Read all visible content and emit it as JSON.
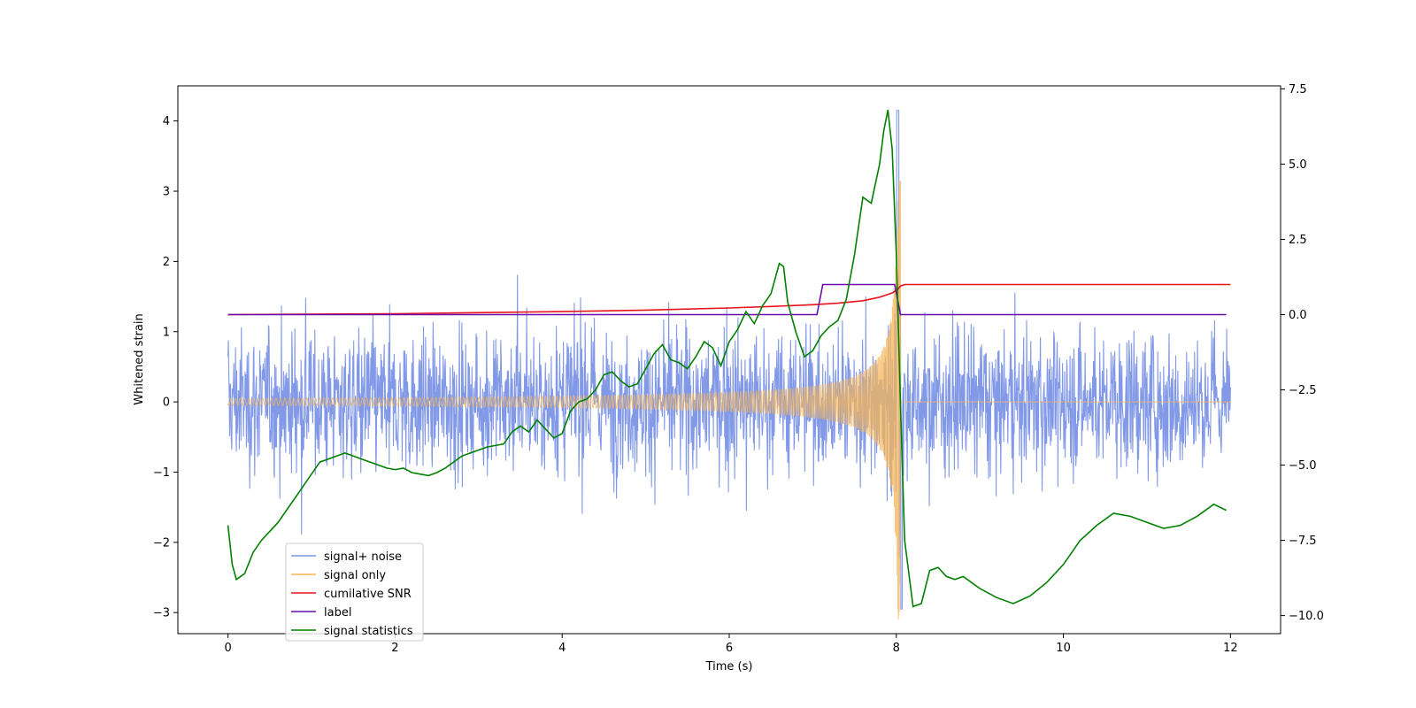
{
  "chart_data": {
    "type": "line",
    "title": "",
    "xlabel": "Time (s)",
    "ylabel": "Whitened strain",
    "ylabel_right": "",
    "xlim": [
      -0.6,
      12.6
    ],
    "ylim": [
      -3.3,
      4.5
    ],
    "ylim_right": [
      -10.6,
      7.6
    ],
    "xticks": [
      0,
      2,
      4,
      6,
      8,
      10,
      12
    ],
    "yticks": [
      -3,
      -2,
      -1,
      0,
      1,
      2,
      3,
      4
    ],
    "yticks_right": [
      -10.0,
      -7.5,
      -5.0,
      -2.5,
      0.0,
      2.5,
      5.0,
      7.5
    ],
    "yticks_right_labels": [
      "−10.0",
      "−7.5",
      "−5.0",
      "−2.5",
      "0.0",
      "2.5",
      "5.0",
      "7.5"
    ],
    "grid": false,
    "legend_position": "lower-left",
    "series": [
      {
        "name": "signal+ noise",
        "axis": "left",
        "color": "#7b94e6",
        "kind": "noise",
        "description_values": {
          "t_start": 0,
          "t_end": 12,
          "typical_min": -1.6,
          "typical_max": 1.8,
          "peak_max": 4.2,
          "peak_min": -3.0
        }
      },
      {
        "name": "signal only",
        "axis": "left",
        "color": "#f5b65a",
        "kind": "chirp",
        "merger_time": 8.05,
        "amplitude_start": 0.05,
        "amplitude_peak": 3.2,
        "after_merger": 0.0
      },
      {
        "name": "cumilative SNR",
        "axis": "right",
        "color": "#e8141b",
        "x": [
          0,
          2,
          4,
          5,
          6,
          6.5,
          7,
          7.3,
          7.6,
          7.8,
          7.95,
          8.02,
          8.05,
          8.1,
          12
        ],
        "values": [
          0.0,
          0.03,
          0.1,
          0.15,
          0.22,
          0.27,
          0.33,
          0.38,
          0.46,
          0.58,
          0.72,
          0.85,
          0.95,
          1.0,
          1.0
        ]
      },
      {
        "name": "label",
        "axis": "right",
        "color": "#6a0dad",
        "x": [
          0,
          7.05,
          7.12,
          7.98,
          8.05,
          11.95
        ],
        "values": [
          0.0,
          0.0,
          1.0,
          1.0,
          0.0,
          0.0
        ]
      },
      {
        "name": "signal statistics",
        "axis": "right",
        "color": "#008000",
        "x": [
          0,
          0.05,
          0.1,
          0.2,
          0.3,
          0.4,
          0.5,
          0.6,
          0.7,
          0.8,
          0.9,
          1.0,
          1.1,
          1.2,
          1.3,
          1.4,
          1.5,
          1.6,
          1.7,
          1.8,
          1.9,
          2.0,
          2.1,
          2.2,
          2.3,
          2.4,
          2.5,
          2.6,
          2.7,
          2.8,
          2.9,
          3.0,
          3.1,
          3.2,
          3.3,
          3.4,
          3.5,
          3.6,
          3.7,
          3.8,
          3.9,
          4.0,
          4.1,
          4.2,
          4.3,
          4.4,
          4.5,
          4.6,
          4.7,
          4.8,
          4.9,
          5.0,
          5.1,
          5.2,
          5.3,
          5.4,
          5.5,
          5.6,
          5.7,
          5.8,
          5.9,
          6.0,
          6.1,
          6.2,
          6.3,
          6.4,
          6.5,
          6.6,
          6.65,
          6.7,
          6.8,
          6.9,
          7.0,
          7.1,
          7.2,
          7.3,
          7.4,
          7.5,
          7.6,
          7.7,
          7.8,
          7.85,
          7.9,
          7.95,
          8.0,
          8.05,
          8.1,
          8.2,
          8.3,
          8.4,
          8.5,
          8.6,
          8.7,
          8.8,
          8.9,
          9.0,
          9.2,
          9.4,
          9.6,
          9.8,
          10.0,
          10.2,
          10.4,
          10.6,
          10.8,
          11.0,
          11.2,
          11.4,
          11.6,
          11.8,
          11.95
        ],
        "values": [
          -7.0,
          -8.3,
          -8.8,
          -8.6,
          -7.9,
          -7.5,
          -7.2,
          -6.9,
          -6.5,
          -6.1,
          -5.7,
          -5.3,
          -4.9,
          -4.8,
          -4.7,
          -4.6,
          -4.7,
          -4.8,
          -4.9,
          -5.0,
          -5.1,
          -5.15,
          -5.1,
          -5.25,
          -5.3,
          -5.35,
          -5.25,
          -5.1,
          -4.9,
          -4.7,
          -4.6,
          -4.5,
          -4.4,
          -4.35,
          -4.3,
          -3.9,
          -3.7,
          -3.9,
          -3.5,
          -3.8,
          -4.1,
          -3.95,
          -3.2,
          -2.9,
          -2.8,
          -2.5,
          -2.0,
          -1.9,
          -2.2,
          -2.4,
          -2.3,
          -1.8,
          -1.3,
          -1.0,
          -1.5,
          -1.6,
          -1.8,
          -1.4,
          -0.9,
          -1.1,
          -1.7,
          -0.9,
          -0.5,
          0.1,
          -0.3,
          0.3,
          0.7,
          1.7,
          1.6,
          0.4,
          -0.6,
          -1.4,
          -1.2,
          -0.7,
          -0.4,
          -0.2,
          0.5,
          2.0,
          3.9,
          3.7,
          5.0,
          6.1,
          6.8,
          5.5,
          2.0,
          -3.0,
          -7.5,
          -9.7,
          -9.6,
          -8.5,
          -8.4,
          -8.7,
          -8.8,
          -8.7,
          -8.9,
          -9.1,
          -9.4,
          -9.6,
          -9.35,
          -8.9,
          -8.3,
          -7.5,
          -7.0,
          -6.6,
          -6.7,
          -6.9,
          -7.1,
          -7.0,
          -6.7,
          -6.3,
          -6.5
        ]
      }
    ]
  },
  "legend": {
    "items": [
      {
        "label": "signal+ noise",
        "color": "#7b94e6"
      },
      {
        "label": "signal only",
        "color": "#f5b65a"
      },
      {
        "label": "cumilative SNR",
        "color": "#e8141b"
      },
      {
        "label": "label",
        "color": "#6a0dad"
      },
      {
        "label": "signal statistics",
        "color": "#008000"
      }
    ]
  }
}
